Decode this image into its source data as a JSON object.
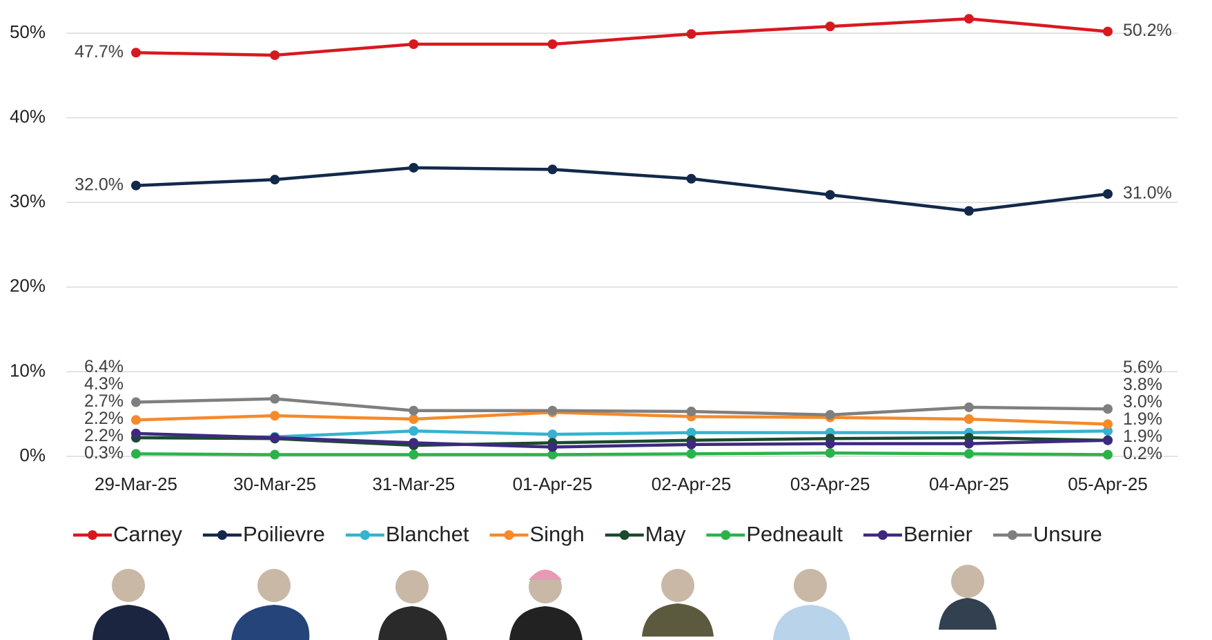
{
  "chart_data": {
    "type": "line",
    "categories": [
      "29-Mar-25",
      "30-Mar-25",
      "31-Mar-25",
      "01-Apr-25",
      "02-Apr-25",
      "03-Apr-25",
      "04-Apr-25",
      "05-Apr-25"
    ],
    "ylim": [
      0,
      51.8
    ],
    "yticks": [
      {
        "value": 0,
        "label": "0%"
      },
      {
        "value": 10,
        "label": "10%"
      },
      {
        "value": 20,
        "label": "20%"
      },
      {
        "value": 30,
        "label": "30%"
      },
      {
        "value": 40,
        "label": "40%"
      },
      {
        "value": 50,
        "label": "50%"
      }
    ],
    "grid": true,
    "legend": "bottom",
    "series": [
      {
        "name": "Carney",
        "color": "#d7191f",
        "values": [
          47.7,
          47.4,
          48.7,
          48.7,
          49.9,
          50.8,
          51.7,
          50.2
        ],
        "value_labels": [
          "47.7%",
          null,
          null,
          null,
          null,
          null,
          null,
          "50.2%"
        ]
      },
      {
        "name": "Poilievre",
        "color": "#13294b",
        "values": [
          32.0,
          32.7,
          34.1,
          33.9,
          32.8,
          30.9,
          29.0,
          31.0
        ],
        "value_labels": [
          "32.0%",
          null,
          null,
          null,
          null,
          null,
          null,
          "31.0%"
        ]
      },
      {
        "name": "Blanchet",
        "color": "#35b3cf",
        "values": [
          2.2,
          2.3,
          3.0,
          2.6,
          2.8,
          2.8,
          2.8,
          3.0
        ],
        "value_labels": [
          "2.2%",
          null,
          null,
          null,
          null,
          null,
          null,
          "3.0%"
        ]
      },
      {
        "name": "Singh",
        "color": "#f58a2b",
        "values": [
          4.3,
          4.8,
          4.4,
          5.2,
          4.7,
          4.6,
          4.4,
          3.8
        ],
        "value_labels": [
          "4.3%",
          null,
          null,
          null,
          null,
          null,
          null,
          "3.8%"
        ]
      },
      {
        "name": "May",
        "color": "#1b4a2e",
        "values": [
          2.2,
          2.1,
          1.3,
          1.6,
          1.9,
          2.1,
          2.2,
          1.9
        ],
        "value_labels": [
          "2.2%",
          null,
          null,
          null,
          null,
          null,
          null,
          "1.9%"
        ]
      },
      {
        "name": "Pedneault",
        "color": "#2bb34a",
        "values": [
          0.3,
          0.2,
          0.2,
          0.2,
          0.3,
          0.4,
          0.3,
          0.2
        ],
        "value_labels": [
          "0.3%",
          null,
          null,
          null,
          null,
          null,
          null,
          "0.2%"
        ]
      },
      {
        "name": "Bernier",
        "color": "#3d2a7e",
        "values": [
          2.7,
          2.2,
          1.6,
          1.1,
          1.4,
          1.5,
          1.5,
          1.9
        ],
        "value_labels": [
          "2.7%",
          null,
          null,
          null,
          null,
          null,
          null,
          "1.9%"
        ]
      },
      {
        "name": "Unsure",
        "color": "#7f7f7f",
        "values": [
          6.4,
          6.8,
          5.4,
          5.4,
          5.3,
          4.9,
          5.8,
          5.6
        ],
        "value_labels": [
          "6.4%",
          null,
          null,
          null,
          null,
          null,
          null,
          "5.6%"
        ]
      }
    ]
  }
}
